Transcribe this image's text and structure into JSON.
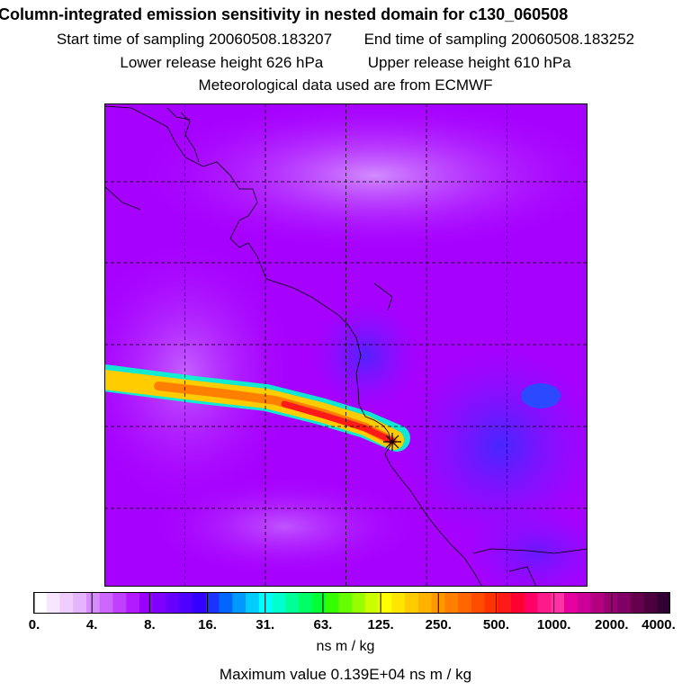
{
  "header": {
    "title": "Column-integrated emission sensitivity in nested domain for c130_060508",
    "start_label": "Start time of sampling 20060508.183207",
    "end_label": "End time of sampling 20060508.183252",
    "lower_label": "Lower release height  626 hPa",
    "upper_label": "Upper release height  610 hPa",
    "met_label": "Meteorological data used are from ECMWF"
  },
  "colorbar": {
    "tick_labels": [
      "0.",
      "4.",
      "8.",
      "16.",
      "31.",
      "63.",
      "125.",
      "250.",
      "500.",
      "1000.",
      "2000.",
      "4000."
    ],
    "colors": [
      "#ffffff",
      "#f7e6ff",
      "#f0ccff",
      "#e6b3ff",
      "#d98cff",
      "#cc66ff",
      "#bf40ff",
      "#b31aff",
      "#9900ff",
      "#7f00ff",
      "#6600ff",
      "#4d00ff",
      "#3300ff",
      "#1a33ff",
      "#0066ff",
      "#0099ff",
      "#00ccff",
      "#00ffff",
      "#00ffcc",
      "#00ff99",
      "#00ff66",
      "#00ff33",
      "#33ff00",
      "#66ff00",
      "#99ff00",
      "#ccff00",
      "#ffff00",
      "#ffe600",
      "#ffcc00",
      "#ffb300",
      "#ff9900",
      "#ff8000",
      "#ff6600",
      "#ff4d00",
      "#ff3300",
      "#ff1a1a",
      "#ff0033",
      "#ff0066",
      "#ff1a8c",
      "#ff33a6",
      "#e6009e",
      "#cc0099",
      "#b30080",
      "#990073",
      "#800066",
      "#66004d",
      "#4d0040",
      "#330033"
    ],
    "units": "ns m / kg",
    "max_value": "Maximum value  0.139E+04 ns m / kg"
  },
  "map": {
    "background_color": "#a600ff",
    "plume_core_color": "#ff1a1a",
    "plume_mid_color": "#ffcc00",
    "plume_outer_color": "#00ff99",
    "low_color": "#3b2bff",
    "high_color": "#ffffff"
  }
}
